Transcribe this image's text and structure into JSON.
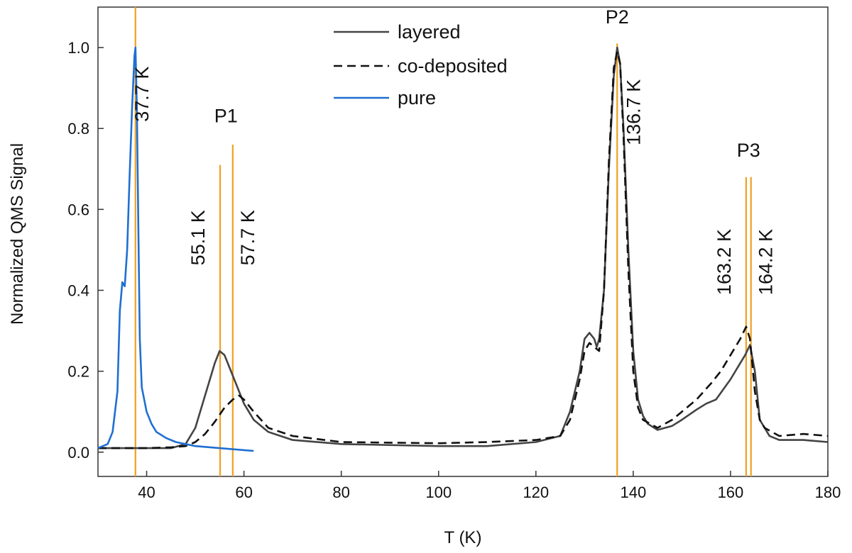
{
  "chart_data": {
    "type": "line",
    "title": "",
    "xlabel": "T (K)",
    "ylabel": "Normalized QMS Signal",
    "xlim": [
      30,
      180
    ],
    "ylim": [
      -0.06,
      1.1
    ],
    "xticks": [
      40,
      60,
      80,
      100,
      120,
      140,
      160,
      180
    ],
    "yticks": [
      0.0,
      0.2,
      0.4,
      0.6,
      0.8,
      1.0
    ],
    "xtick_labels": [
      "40",
      "60",
      "80",
      "100",
      "120",
      "140",
      "160",
      "180"
    ],
    "ytick_labels": [
      "0.0",
      "0.2",
      "0.4",
      "0.6",
      "0.8",
      "1.0"
    ],
    "grid": false,
    "legend_position": "top-center",
    "series": [
      {
        "name": "layered",
        "color": "#444444",
        "style": "solid",
        "points": [
          [
            30,
            0.01
          ],
          [
            40,
            0.01
          ],
          [
            45,
            0.01
          ],
          [
            48,
            0.02
          ],
          [
            50,
            0.06
          ],
          [
            52,
            0.14
          ],
          [
            54,
            0.22
          ],
          [
            55,
            0.25
          ],
          [
            56,
            0.24
          ],
          [
            58,
            0.18
          ],
          [
            60,
            0.12
          ],
          [
            62,
            0.08
          ],
          [
            65,
            0.05
          ],
          [
            70,
            0.03
          ],
          [
            80,
            0.02
          ],
          [
            100,
            0.015
          ],
          [
            110,
            0.015
          ],
          [
            120,
            0.025
          ],
          [
            125,
            0.04
          ],
          [
            127,
            0.1
          ],
          [
            129,
            0.2
          ],
          [
            130,
            0.28
          ],
          [
            131,
            0.295
          ],
          [
            132,
            0.28
          ],
          [
            132.5,
            0.26
          ],
          [
            133,
            0.28
          ],
          [
            134,
            0.4
          ],
          [
            135,
            0.7
          ],
          [
            136,
            0.93
          ],
          [
            136.7,
            1.0
          ],
          [
            137.3,
            0.96
          ],
          [
            138,
            0.8
          ],
          [
            139,
            0.5
          ],
          [
            140,
            0.25
          ],
          [
            141,
            0.13
          ],
          [
            142,
            0.09
          ],
          [
            143,
            0.07
          ],
          [
            145,
            0.055
          ],
          [
            148,
            0.065
          ],
          [
            150,
            0.08
          ],
          [
            153,
            0.105
          ],
          [
            155,
            0.12
          ],
          [
            157,
            0.13
          ],
          [
            160,
            0.18
          ],
          [
            162,
            0.22
          ],
          [
            163,
            0.24
          ],
          [
            164,
            0.265
          ],
          [
            165,
            0.2
          ],
          [
            166,
            0.08
          ],
          [
            168,
            0.04
          ],
          [
            170,
            0.03
          ],
          [
            175,
            0.03
          ],
          [
            180,
            0.025
          ]
        ]
      },
      {
        "name": "co-deposited",
        "color": "#111111",
        "style": "dashed",
        "points": [
          [
            30,
            0.01
          ],
          [
            40,
            0.01
          ],
          [
            45,
            0.012
          ],
          [
            48,
            0.015
          ],
          [
            50,
            0.025
          ],
          [
            52,
            0.045
          ],
          [
            54,
            0.075
          ],
          [
            56,
            0.11
          ],
          [
            57.7,
            0.13
          ],
          [
            59,
            0.14
          ],
          [
            60,
            0.13
          ],
          [
            62,
            0.1
          ],
          [
            65,
            0.06
          ],
          [
            70,
            0.04
          ],
          [
            80,
            0.025
          ],
          [
            100,
            0.022
          ],
          [
            110,
            0.025
          ],
          [
            120,
            0.03
          ],
          [
            125,
            0.04
          ],
          [
            127,
            0.08
          ],
          [
            129,
            0.18
          ],
          [
            130,
            0.25
          ],
          [
            131,
            0.27
          ],
          [
            132,
            0.26
          ],
          [
            133,
            0.25
          ],
          [
            134,
            0.4
          ],
          [
            135,
            0.72
          ],
          [
            136,
            0.95
          ],
          [
            136.7,
            0.99
          ],
          [
            137.3,
            0.96
          ],
          [
            138,
            0.78
          ],
          [
            139,
            0.45
          ],
          [
            140,
            0.2
          ],
          [
            141,
            0.11
          ],
          [
            142,
            0.08
          ],
          [
            145,
            0.06
          ],
          [
            148,
            0.08
          ],
          [
            150,
            0.1
          ],
          [
            153,
            0.13
          ],
          [
            156,
            0.17
          ],
          [
            158,
            0.2
          ],
          [
            160,
            0.24
          ],
          [
            162,
            0.28
          ],
          [
            163.2,
            0.31
          ],
          [
            164,
            0.28
          ],
          [
            165,
            0.15
          ],
          [
            166,
            0.08
          ],
          [
            167,
            0.06
          ],
          [
            170,
            0.04
          ],
          [
            175,
            0.045
          ],
          [
            180,
            0.04
          ]
        ]
      },
      {
        "name": "pure",
        "color": "#1f6fd1",
        "style": "solid",
        "points": [
          [
            30,
            0.01
          ],
          [
            32,
            0.02
          ],
          [
            33,
            0.05
          ],
          [
            34,
            0.15
          ],
          [
            34.5,
            0.35
          ],
          [
            35,
            0.42
          ],
          [
            35.5,
            0.41
          ],
          [
            36,
            0.5
          ],
          [
            36.5,
            0.68
          ],
          [
            37,
            0.85
          ],
          [
            37.5,
            0.98
          ],
          [
            37.7,
            1.0
          ],
          [
            38,
            0.85
          ],
          [
            38.3,
            0.55
          ],
          [
            38.6,
            0.28
          ],
          [
            39,
            0.16
          ],
          [
            40,
            0.1
          ],
          [
            41,
            0.07
          ],
          [
            42,
            0.05
          ],
          [
            44,
            0.035
          ],
          [
            46,
            0.025
          ],
          [
            50,
            0.015
          ],
          [
            55,
            0.01
          ],
          [
            60,
            0.005
          ],
          [
            62,
            0.003
          ]
        ]
      }
    ],
    "peak_markers": [
      {
        "x": 37.7,
        "label": "37.7 K",
        "top": 1.1
      },
      {
        "x": 55.1,
        "label": "55.1 K",
        "top": 0.71
      },
      {
        "x": 57.7,
        "label": "57.7 K",
        "top": 0.76
      },
      {
        "x": 136.7,
        "label": "136.7 K",
        "top": 1.01
      },
      {
        "x": 163.2,
        "label": "163.2 K",
        "top": 0.68
      },
      {
        "x": 164.2,
        "label": "164.2 K",
        "top": 0.68
      }
    ],
    "marker_color": "#f0a020",
    "peak_labels": [
      {
        "text": "P1",
        "x": 56.3,
        "y": 0.815
      },
      {
        "text": "P2",
        "x": 136.7,
        "y": 1.06
      },
      {
        "text": "P3",
        "x": 163.7,
        "y": 0.73
      }
    ]
  }
}
